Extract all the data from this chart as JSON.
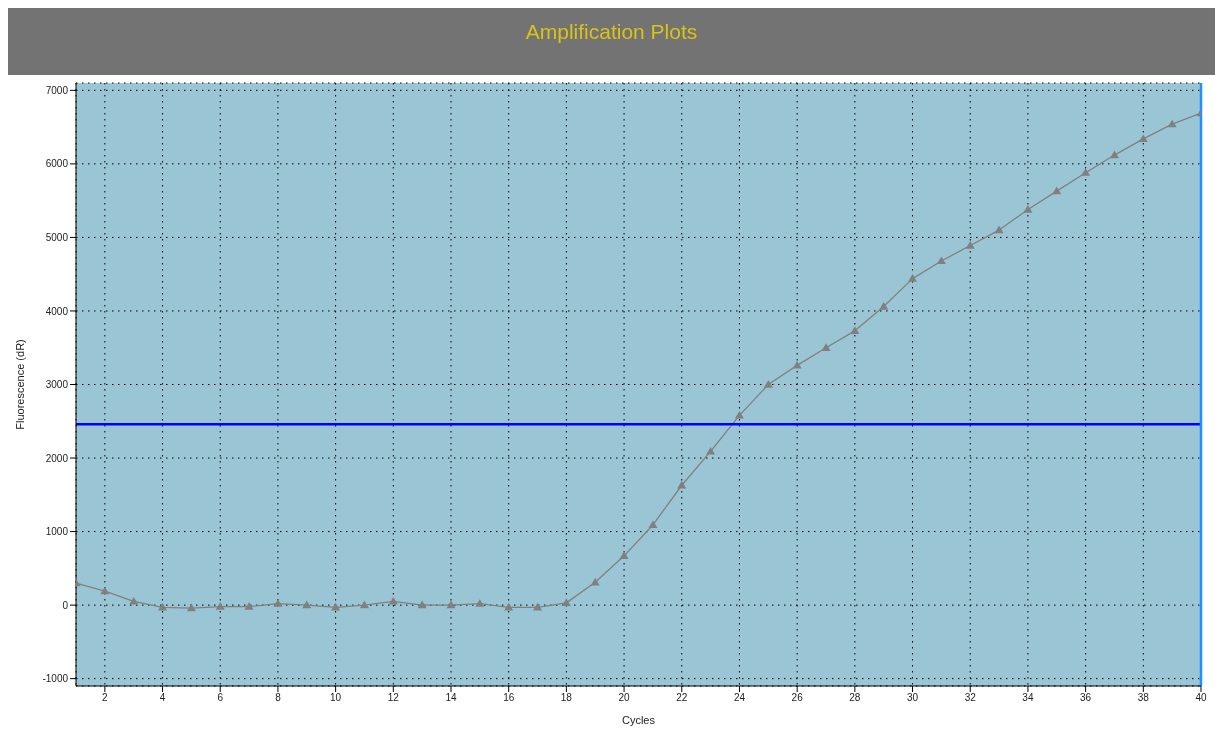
{
  "chart_data": {
    "type": "line",
    "title": "Amplification Plots",
    "xlabel": "Cycles",
    "ylabel": "Fluorescence (dR)",
    "x": [
      1,
      2,
      3,
      4,
      5,
      6,
      7,
      8,
      9,
      10,
      11,
      12,
      13,
      14,
      15,
      16,
      17,
      18,
      19,
      20,
      21,
      22,
      23,
      24,
      25,
      26,
      27,
      28,
      29,
      30,
      31,
      32,
      33,
      34,
      35,
      36,
      37,
      38,
      39,
      40
    ],
    "series": [
      {
        "color": "#808080",
        "values": [
          300,
          190,
          50,
          -30,
          -40,
          -20,
          -20,
          20,
          0,
          -30,
          0,
          50,
          0,
          0,
          20,
          -30,
          -30,
          30,
          310,
          670,
          1090,
          1630,
          2090,
          2580,
          3000,
          3260,
          3500,
          3730,
          4060,
          4440,
          4680,
          4890,
          5100,
          5380,
          5630,
          5880,
          6120,
          6340,
          6540,
          6690
        ]
      }
    ],
    "xlim": [
      1,
      40
    ],
    "xticks": [
      2,
      4,
      6,
      8,
      10,
      12,
      14,
      16,
      18,
      20,
      22,
      24,
      26,
      28,
      30,
      32,
      34,
      36,
      38,
      40
    ],
    "ylim": [
      -1100,
      7100
    ],
    "yticks": [
      -1000,
      0,
      1000,
      2000,
      3000,
      4000,
      5000,
      6000,
      7000
    ],
    "ref_lines": [
      {
        "axis": "y",
        "value": 2460,
        "color": "#0000ff"
      },
      {
        "axis": "x",
        "value": 40,
        "color": "#1e90ff"
      }
    ],
    "grid": true,
    "marker": "triangle",
    "line_style": "solid"
  }
}
